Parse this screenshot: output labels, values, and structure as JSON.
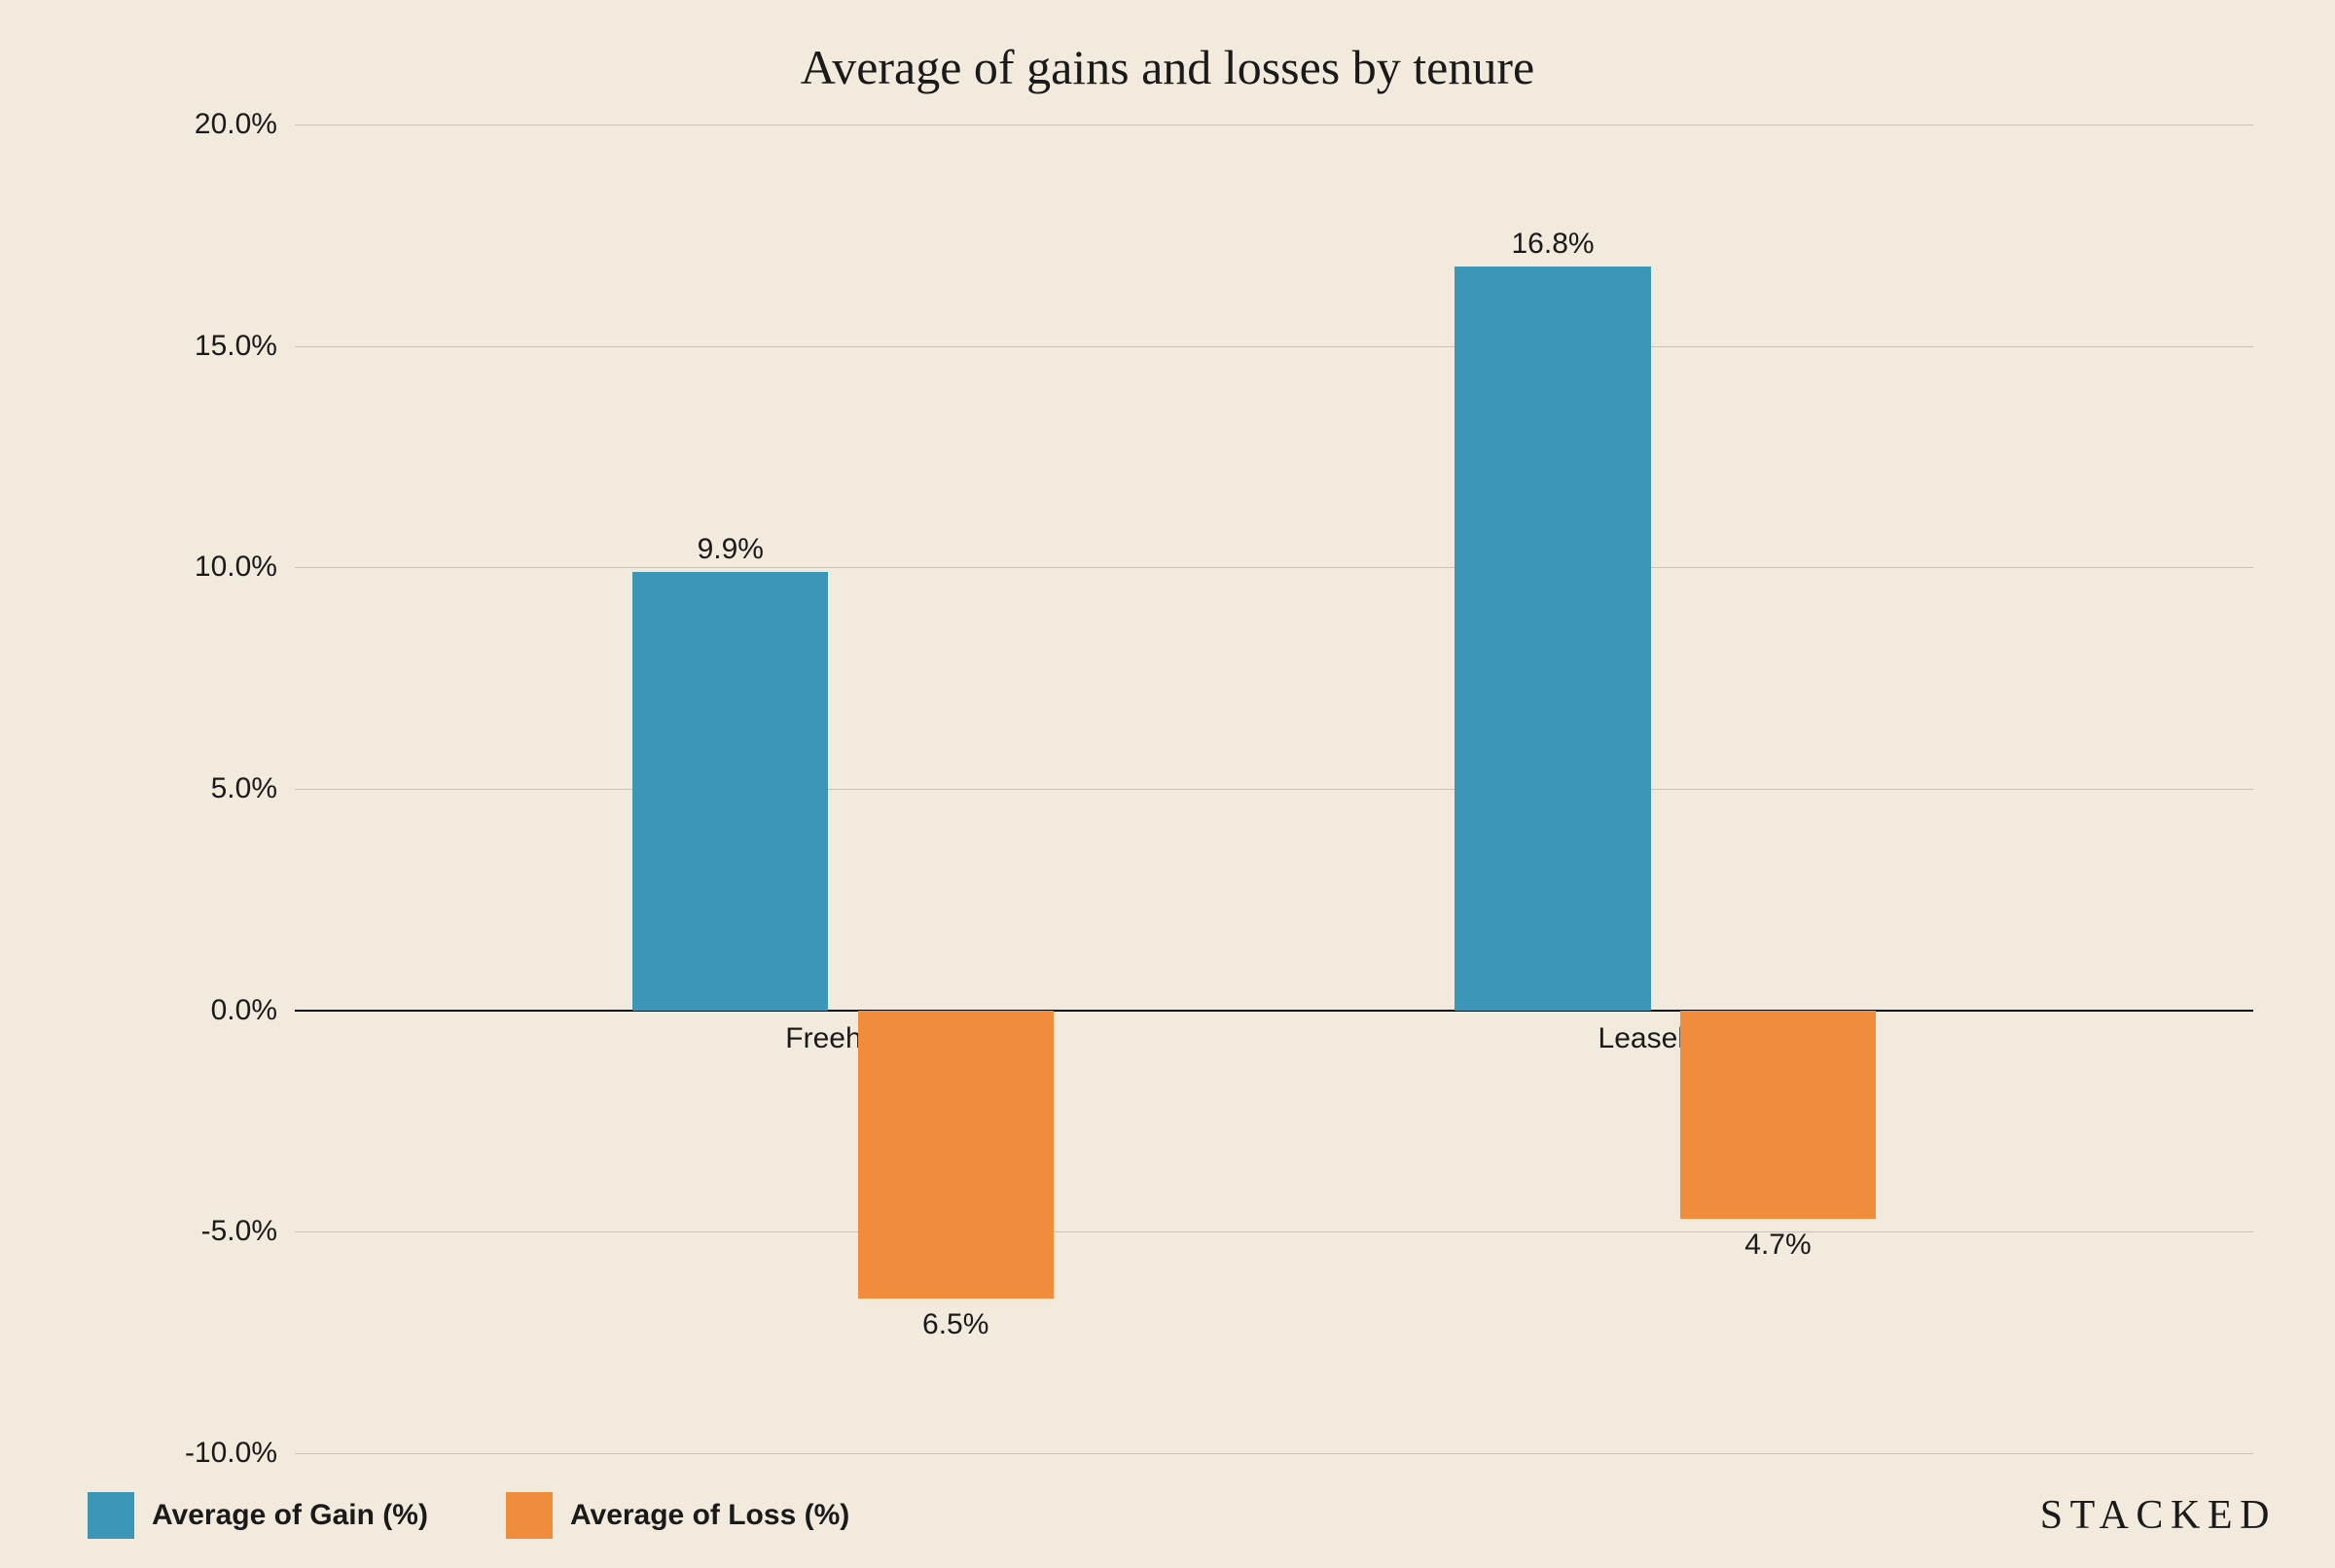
{
  "chart": {
    "type": "bar",
    "title": "Average of gains and losses by tenure",
    "title_fontsize": 50,
    "title_color": "#1a1a1a",
    "background_color": "#f2ebdd",
    "ylim": [
      -10,
      20
    ],
    "ytick_step": 5,
    "yticks": [
      -10,
      -5,
      0,
      5,
      10,
      15,
      20
    ],
    "ytick_labels": [
      "-10.0%",
      "-5.0%",
      "0.0%",
      "5.0%",
      "10.0%",
      "15.0%",
      "20.0%"
    ],
    "ytick_fontsize": 30,
    "ytick_color": "#1a1a1a",
    "grid_color": "#c9c2b4",
    "grid_width": 1,
    "zero_line_color": "#000000",
    "zero_line_width": 2,
    "categories": [
      "Freehold",
      "Leasehold"
    ],
    "category_fontsize": 30,
    "category_color": "#1a1a1a",
    "series": [
      {
        "name": "Average of Gain (%)",
        "color": "#3b96b7",
        "values": [
          9.9,
          16.8
        ],
        "value_labels": [
          "9.9%",
          "16.8%"
        ]
      },
      {
        "name": "Average of Loss (%)",
        "color": "#f08c3b",
        "values": [
          -6.5,
          -4.7
        ],
        "value_labels": [
          "6.5%",
          "4.7%"
        ]
      }
    ],
    "bar_width_pct": 10,
    "bar_gap_pct": 1.5,
    "group_positions_pct": [
      28,
      70
    ],
    "datalabel_fontsize": 30,
    "datalabel_color": "#1a1a1a",
    "plot_left_pct": 11,
    "plot_right_pct": 1.5
  },
  "legend": {
    "items": [
      {
        "label": "Average of Gain (%)",
        "color": "#3b96b7"
      },
      {
        "label": "Average of Loss (%)",
        "color": "#f08c3b"
      }
    ],
    "swatch_size": 48,
    "fontsize": 30,
    "fontweight": 700
  },
  "brand": {
    "text": "STACKED",
    "fontsize": 42,
    "letter_spacing_em": 0.18,
    "color": "#1a1a1a"
  }
}
